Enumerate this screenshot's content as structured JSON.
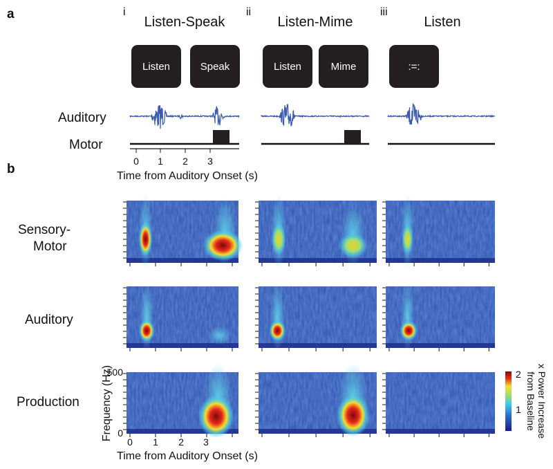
{
  "panel_a": {
    "label": "a",
    "conditions": [
      {
        "numeral": "i",
        "title": "Listen-Speak",
        "cues": [
          "Listen",
          "Speak"
        ]
      },
      {
        "numeral": "ii",
        "title": "Listen-Mime",
        "cues": [
          "Listen",
          "Mime"
        ]
      },
      {
        "numeral": "iii",
        "title": "Listen",
        "cues": [
          ":=:"
        ]
      }
    ],
    "row_labels": [
      "Auditory",
      "Motor"
    ],
    "xticks": [
      "0",
      "1",
      "2",
      "3"
    ],
    "xlabel": "Time from Auditory Onset (s)"
  },
  "panel_b": {
    "label": "b",
    "row_labels": [
      [
        "Sensory-",
        "Motor"
      ],
      [
        "Auditory"
      ],
      [
        "Production"
      ]
    ],
    "yticks": [
      "500",
      "0"
    ],
    "ylabel": "Frequency (Hz)",
    "xticks": [
      "0",
      "1",
      "2",
      "3"
    ],
    "xlabel": "Time from Auditory Onset (s)",
    "colorbar": {
      "ticks": [
        "2",
        "1"
      ],
      "label": [
        "x Power Increase",
        "from Baseline"
      ]
    }
  }
}
